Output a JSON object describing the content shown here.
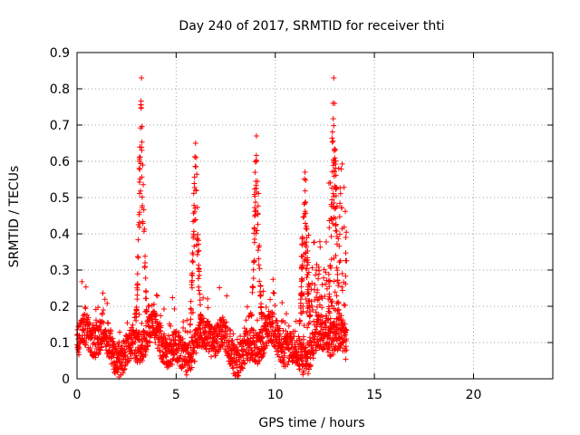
{
  "chart_data": {
    "type": "scatter",
    "title": "Day 240 of 2017, SRMTID for receiver thti",
    "xlabel": "GPS time / hours",
    "ylabel": "SRMTID / TECUs",
    "xlim": [
      0,
      24
    ],
    "ylim": [
      0,
      0.9
    ],
    "x_ticks": [
      0,
      5,
      10,
      15,
      20
    ],
    "y_ticks": [
      0,
      0.1,
      0.2,
      0.3,
      0.4,
      0.5,
      0.6,
      0.7,
      0.8,
      0.9
    ],
    "grid": true,
    "marker": "+",
    "color": "#ff0000",
    "data_coverage_hours": [
      0,
      13.6
    ],
    "bursts": [
      {
        "center_hours": 3.25,
        "peak": 0.83
      },
      {
        "center_hours": 5.98,
        "peak": 0.65
      },
      {
        "center_hours": 9.05,
        "peak": 0.67
      },
      {
        "center_hours": 11.5,
        "peak": 0.57
      },
      {
        "center_hours": 12.95,
        "peak": 0.83
      }
    ]
  }
}
